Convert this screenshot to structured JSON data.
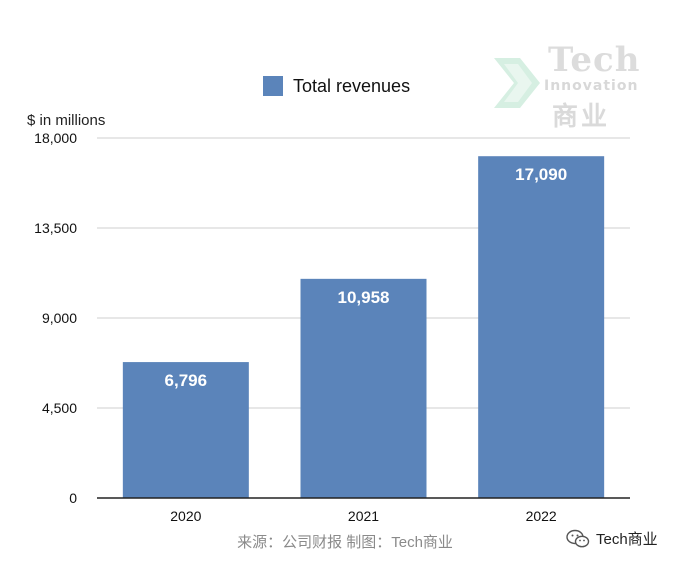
{
  "legend": {
    "label": "Total revenues",
    "color": "#5B84BA"
  },
  "axis": {
    "y_unit_label": "$ in millions"
  },
  "source_note": "来源：公司财报 制图：Tech商业",
  "credit": {
    "text": "Tech商业",
    "icon": "wechat-icon"
  },
  "logo": {
    "title": "Tech",
    "subtitle": "Innovation",
    "cn": "商业"
  },
  "chart_data": {
    "type": "bar",
    "categories": [
      "2020",
      "2021",
      "2022"
    ],
    "series": [
      {
        "name": "Total revenues",
        "values": [
          6796,
          10958,
          17090
        ],
        "labels": [
          "6,796",
          "10,958",
          "17,090"
        ]
      }
    ],
    "ylabel": "$ in millions",
    "ylim": [
      0,
      18000
    ],
    "yticks": [
      0,
      4500,
      9000,
      13500,
      18000
    ],
    "ytick_labels": [
      "0",
      "4,500",
      "9,000",
      "13,500",
      "18,000"
    ],
    "grid": true,
    "legend_position": "top",
    "bar_color": "#5B84BA"
  }
}
